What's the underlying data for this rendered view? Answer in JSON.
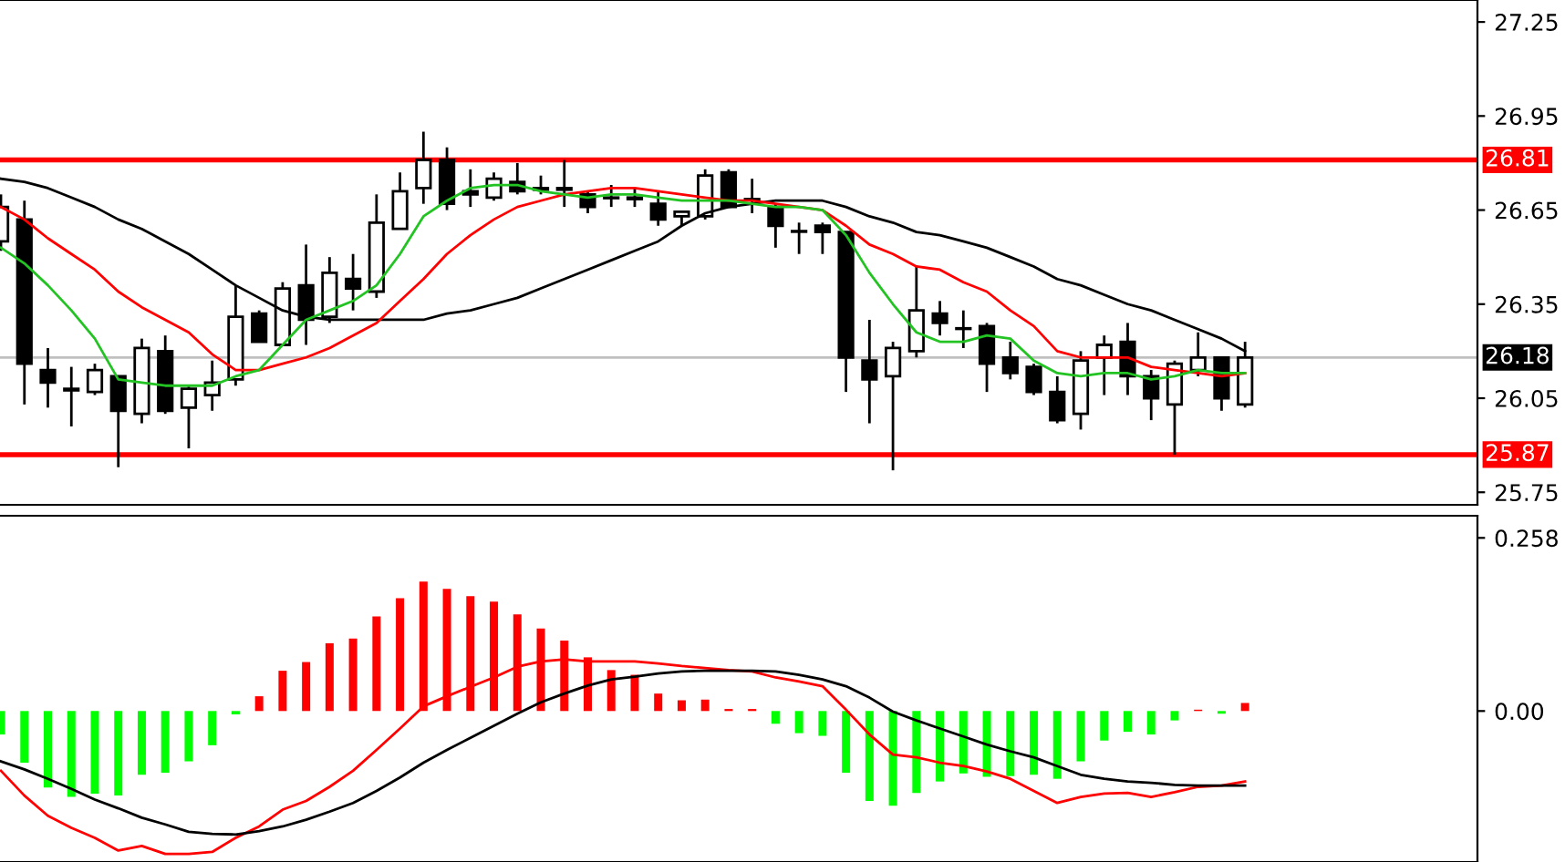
{
  "chart_data": [
    {
      "type": "candlestick",
      "categories": [
        null,
        null,
        null,
        null,
        null,
        null,
        null,
        null,
        null,
        null,
        null,
        null,
        null,
        null,
        null,
        null,
        null,
        null,
        null,
        null,
        null,
        null,
        null,
        null,
        null,
        null,
        null,
        null,
        null,
        null,
        null,
        null,
        null,
        null,
        null,
        null,
        null,
        null,
        null,
        null,
        null,
        null,
        null,
        null,
        null,
        null,
        null,
        null,
        null,
        null,
        null,
        null,
        null,
        null
      ],
      "ohlc": [
        [
          26.55,
          26.7,
          26.52,
          26.66
        ],
        [
          26.62,
          26.68,
          26.03,
          26.16
        ],
        [
          26.14,
          26.21,
          26.02,
          26.1
        ],
        [
          26.08,
          26.15,
          25.96,
          26.075
        ],
        [
          26.07,
          26.16,
          26.06,
          26.14
        ],
        [
          26.12,
          26.12,
          25.83,
          26.01
        ],
        [
          26.0,
          26.24,
          25.97,
          26.21
        ],
        [
          26.2,
          26.25,
          26.0,
          26.01
        ],
        [
          26.02,
          26.09,
          25.89,
          26.08
        ],
        [
          26.06,
          26.17,
          26.01,
          26.1
        ],
        [
          26.11,
          26.41,
          26.09,
          26.31
        ],
        [
          26.32,
          26.33,
          26.23,
          26.23
        ],
        [
          26.22,
          26.42,
          26.22,
          26.4
        ],
        [
          26.41,
          26.54,
          26.22,
          26.3
        ],
        [
          26.31,
          26.5,
          26.29,
          26.45
        ],
        [
          26.43,
          26.51,
          26.33,
          26.4
        ],
        [
          26.39,
          26.7,
          26.37,
          26.61
        ],
        [
          26.59,
          26.77,
          26.59,
          26.71
        ],
        [
          26.72,
          26.9,
          26.67,
          26.81
        ],
        [
          26.81,
          26.85,
          26.65,
          26.67
        ],
        [
          26.71,
          26.78,
          26.66,
          26.7
        ],
        [
          26.69,
          26.77,
          26.68,
          26.75
        ],
        [
          26.74,
          26.8,
          26.7,
          26.71
        ],
        [
          26.72,
          26.76,
          26.7,
          26.715
        ],
        [
          26.72,
          26.81,
          26.66,
          26.715
        ],
        [
          26.7,
          26.71,
          26.64,
          26.66
        ],
        [
          26.69,
          26.73,
          26.66,
          26.688
        ],
        [
          26.69,
          26.72,
          26.66,
          26.685
        ],
        [
          26.67,
          26.71,
          26.6,
          26.62
        ],
        [
          26.63,
          26.645,
          26.6,
          26.645
        ],
        [
          26.63,
          26.78,
          26.62,
          26.76
        ],
        [
          26.77,
          26.78,
          26.66,
          26.66
        ],
        [
          26.685,
          26.75,
          26.64,
          26.683
        ],
        [
          26.66,
          26.67,
          26.53,
          26.6
        ],
        [
          26.583,
          26.61,
          26.51,
          26.581
        ],
        [
          26.6,
          26.61,
          26.51,
          26.58
        ],
        [
          26.58,
          26.58,
          26.07,
          26.18
        ],
        [
          26.17,
          26.3,
          25.97,
          26.11
        ],
        [
          26.12,
          26.23,
          25.82,
          26.21
        ],
        [
          26.2,
          26.47,
          26.18,
          26.33
        ],
        [
          26.32,
          26.36,
          26.25,
          26.29
        ],
        [
          26.273,
          26.33,
          26.21,
          26.271
        ],
        [
          26.28,
          26.29,
          26.07,
          26.16
        ],
        [
          26.18,
          26.23,
          26.11,
          26.13
        ],
        [
          26.15,
          26.16,
          26.06,
          26.07
        ],
        [
          26.07,
          26.12,
          25.97,
          25.98
        ],
        [
          26.0,
          26.2,
          25.95,
          26.17
        ],
        [
          26.18,
          26.25,
          26.06,
          26.22
        ],
        [
          26.23,
          26.29,
          26.06,
          26.12
        ],
        [
          26.12,
          26.14,
          25.98,
          26.05
        ],
        [
          26.03,
          26.17,
          25.87,
          26.16
        ],
        [
          26.14,
          26.26,
          26.12,
          26.18
        ],
        [
          26.18,
          26.18,
          26.01,
          26.05
        ],
        [
          26.03,
          26.23,
          26.02,
          26.18
        ]
      ],
      "series": [
        {
          "type": "line",
          "color": "#000000",
          "values": [
            26.75,
            26.74,
            26.72,
            26.69,
            26.66,
            26.62,
            26.59,
            26.55,
            26.51,
            26.46,
            26.41,
            26.37,
            26.33,
            26.31,
            26.3,
            26.3,
            26.3,
            26.3,
            26.3,
            26.32,
            26.33,
            26.35,
            26.37,
            26.4,
            26.43,
            26.46,
            26.49,
            26.52,
            26.55,
            26.6,
            26.64,
            26.66,
            26.67,
            26.68,
            26.68,
            26.68,
            26.66,
            26.63,
            26.61,
            26.58,
            26.57,
            26.55,
            26.53,
            26.5,
            26.47,
            26.43,
            26.41,
            26.38,
            26.35,
            26.33,
            26.3,
            26.27,
            26.24,
            26.2
          ]
        },
        {
          "type": "line",
          "color": "#ff0000",
          "values": [
            26.66,
            26.62,
            26.56,
            26.51,
            26.46,
            26.39,
            26.34,
            26.3,
            26.26,
            26.19,
            26.14,
            26.14,
            26.16,
            26.18,
            26.21,
            26.25,
            26.29,
            26.36,
            26.43,
            26.51,
            26.57,
            26.62,
            26.66,
            26.68,
            26.7,
            26.71,
            26.72,
            26.72,
            26.71,
            26.7,
            26.69,
            26.68,
            26.68,
            26.67,
            26.66,
            26.65,
            26.6,
            26.54,
            26.51,
            26.47,
            26.46,
            26.42,
            26.39,
            26.33,
            26.28,
            26.2,
            26.18,
            26.18,
            26.18,
            26.15,
            26.14,
            26.13,
            26.12,
            26.13
          ]
        },
        {
          "type": "line",
          "color": "#22c322",
          "values": [
            26.53,
            26.48,
            26.41,
            26.33,
            26.24,
            26.11,
            26.1,
            26.09,
            26.09,
            26.09,
            26.12,
            26.14,
            26.22,
            26.3,
            26.33,
            26.36,
            26.41,
            26.51,
            26.63,
            26.68,
            26.72,
            26.73,
            26.73,
            26.71,
            26.7,
            26.69,
            26.7,
            26.7,
            26.69,
            26.68,
            26.68,
            26.68,
            26.67,
            26.66,
            26.66,
            26.65,
            26.57,
            26.45,
            26.35,
            26.26,
            26.23,
            26.23,
            26.25,
            26.24,
            26.17,
            26.13,
            26.12,
            26.13,
            26.13,
            26.11,
            26.12,
            26.14,
            26.13,
            26.13
          ]
        }
      ],
      "ylim": [
        25.71,
        27.32
      ],
      "yticks": [
        27.25,
        26.95,
        26.65,
        26.35,
        26.05,
        25.75
      ],
      "ref_lines": [
        {
          "axis": "y",
          "value": 26.81,
          "label": "26.81",
          "color": "#ff0000"
        },
        {
          "axis": "y",
          "value": 25.87,
          "label": "25.87",
          "color": "#ff0000"
        },
        {
          "axis": "y",
          "value": 26.18,
          "label": "26.18",
          "color": "#c0c0c0"
        }
      ],
      "tick_labels": "y",
      "grid": false,
      "legend": false
    },
    {
      "type": "bar",
      "categories": [
        null,
        null,
        null,
        null,
        null,
        null,
        null,
        null,
        null,
        null,
        null,
        null,
        null,
        null,
        null,
        null,
        null,
        null,
        null,
        null,
        null,
        null,
        null,
        null,
        null,
        null,
        null,
        null,
        null,
        null,
        null,
        null,
        null,
        null,
        null,
        null,
        null,
        null,
        null,
        null,
        null,
        null,
        null,
        null,
        null,
        null,
        null,
        null,
        null,
        null,
        null,
        null,
        null,
        null
      ],
      "values": [
        -0.035,
        -0.077,
        -0.114,
        -0.128,
        -0.123,
        -0.126,
        -0.095,
        -0.092,
        -0.075,
        -0.051,
        -0.005,
        0.022,
        0.06,
        0.073,
        0.101,
        0.108,
        0.141,
        0.168,
        0.193,
        0.182,
        0.171,
        0.163,
        0.144,
        0.123,
        0.105,
        0.08,
        0.061,
        0.054,
        0.026,
        0.016,
        0.017,
        0.003,
        0.003,
        -0.019,
        -0.033,
        -0.037,
        -0.092,
        -0.134,
        -0.141,
        -0.122,
        -0.105,
        -0.093,
        -0.098,
        -0.097,
        -0.095,
        -0.101,
        -0.075,
        -0.044,
        -0.031,
        -0.035,
        -0.014,
        0.002,
        -0.004,
        0.012
      ],
      "colors": [
        "#00ff00",
        "#00ff00",
        "#00ff00",
        "#00ff00",
        "#00ff00",
        "#00ff00",
        "#00ff00",
        "#00ff00",
        "#00ff00",
        "#00ff00",
        "#00ff00",
        "#ff0000",
        "#ff0000",
        "#ff0000",
        "#ff0000",
        "#ff0000",
        "#ff0000",
        "#ff0000",
        "#ff0000",
        "#ff0000",
        "#ff0000",
        "#ff0000",
        "#ff0000",
        "#ff0000",
        "#ff0000",
        "#ff0000",
        "#ff0000",
        "#ff0000",
        "#ff0000",
        "#ff0000",
        "#ff0000",
        "#ff0000",
        "#ff0000",
        "#00ff00",
        "#00ff00",
        "#00ff00",
        "#00ff00",
        "#00ff00",
        "#00ff00",
        "#00ff00",
        "#00ff00",
        "#00ff00",
        "#00ff00",
        "#00ff00",
        "#00ff00",
        "#00ff00",
        "#00ff00",
        "#00ff00",
        "#00ff00",
        "#00ff00",
        "#00ff00",
        "#ff0000",
        "#00ff00",
        "#ff0000"
      ],
      "series": [
        {
          "type": "line",
          "color": "#ff0000",
          "values": [
            -0.089,
            -0.126,
            -0.156,
            -0.174,
            -0.189,
            -0.208,
            -0.201,
            -0.213,
            -0.213,
            -0.21,
            -0.189,
            -0.172,
            -0.147,
            -0.134,
            -0.113,
            -0.089,
            -0.058,
            -0.026,
            0.007,
            0.022,
            0.036,
            0.05,
            0.066,
            0.074,
            0.077,
            0.074,
            0.074,
            0.074,
            0.071,
            0.067,
            0.064,
            0.061,
            0.059,
            0.05,
            0.044,
            0.037,
            0.002,
            -0.035,
            -0.065,
            -0.069,
            -0.077,
            -0.082,
            -0.09,
            -0.101,
            -0.119,
            -0.137,
            -0.128,
            -0.123,
            -0.122,
            -0.128,
            -0.121,
            -0.113,
            -0.111,
            -0.105
          ]
        },
        {
          "type": "line",
          "color": "#000000",
          "values": [
            -0.075,
            -0.087,
            -0.101,
            -0.116,
            -0.132,
            -0.145,
            -0.159,
            -0.169,
            -0.18,
            -0.183,
            -0.184,
            -0.179,
            -0.172,
            -0.162,
            -0.15,
            -0.137,
            -0.119,
            -0.099,
            -0.077,
            -0.058,
            -0.04,
            -0.022,
            -0.004,
            0.013,
            0.026,
            0.038,
            0.047,
            0.051,
            0.056,
            0.059,
            0.06,
            0.06,
            0.06,
            0.059,
            0.054,
            0.047,
            0.037,
            0.02,
            -0.001,
            -0.014,
            -0.026,
            -0.038,
            -0.05,
            -0.06,
            -0.069,
            -0.082,
            -0.095,
            -0.101,
            -0.105,
            -0.107,
            -0.11,
            -0.111,
            -0.111,
            -0.111
          ]
        }
      ],
      "ylim": [
        -0.225,
        0.291
      ],
      "yticks": [
        0.258,
        {
          "value": 0,
          "label": "0.00"
        }
      ],
      "tick_labels": "y",
      "grid": false,
      "legend": false
    }
  ]
}
